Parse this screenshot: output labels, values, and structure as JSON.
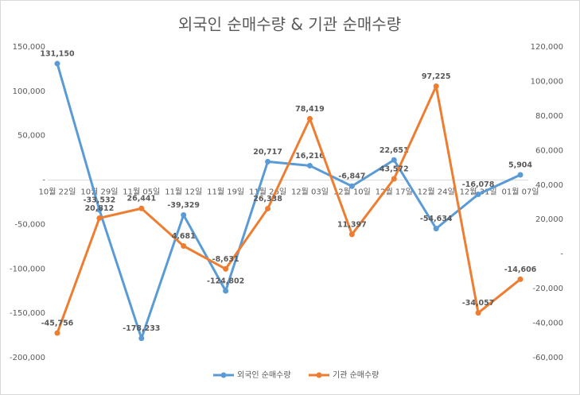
{
  "chart_data": {
    "type": "line",
    "title": "외국인 순매수량 & 기관 순매수량",
    "categories": [
      "10월 22일",
      "10월 29일",
      "11월 05일",
      "11월 12일",
      "11월 19일",
      "11월 26일",
      "12월 03일",
      "12월 10일",
      "12월 17일",
      "12월 24일",
      "12월 31일",
      "01월 07일"
    ],
    "series": [
      {
        "name": "외국인 순매수량",
        "color": "#5b9bd5",
        "label_color": "#4472c4",
        "values": [
          131150,
          -33532,
          -178233,
          -39329,
          -124802,
          20717,
          16216,
          -6847,
          22651,
          -54634,
          -16078,
          5904
        ],
        "value_labels": [
          "131,150",
          "-33,532",
          "-178,233",
          "-39,329",
          "-124,802",
          "20,717",
          "16,216",
          "-6,847",
          "22,651",
          "-54,634",
          "-16,078",
          "5,904"
        ]
      },
      {
        "name": "기관 순매수량",
        "color": "#ed7d31",
        "label_color": "#ed7d31",
        "axis": "y2",
        "values": [
          -45756,
          20812,
          26441,
          4681,
          -8631,
          26338,
          78419,
          11397,
          43572,
          97225,
          -34057,
          -14606
        ],
        "value_labels": [
          "-45,756",
          "20,812",
          "26,441",
          "4,681",
          "-8,631",
          "26,338",
          "78,419",
          "11,397",
          "43,572",
          "97,225",
          "-34,057",
          "-14,606"
        ]
      }
    ],
    "ylim": [
      -200000,
      150000
    ],
    "yticks": [
      {
        "value": -200000,
        "label": "-200,000"
      },
      {
        "value": -150000,
        "label": "-150,000"
      },
      {
        "value": -100000,
        "label": "-100,000"
      },
      {
        "value": -50000,
        "label": "-50,000"
      },
      {
        "value": 0,
        "label": "-"
      },
      {
        "value": 50000,
        "label": "50,000"
      },
      {
        "value": 100000,
        "label": "100,000"
      },
      {
        "value": 150000,
        "label": "150,000"
      }
    ],
    "y2lim": [
      -60000,
      120000
    ],
    "y2ticks": [
      {
        "value": -60000,
        "label": "-60,000"
      },
      {
        "value": -40000,
        "label": "-40,000"
      },
      {
        "value": -20000,
        "label": "-20,000"
      },
      {
        "value": 0,
        "label": "-"
      },
      {
        "value": 20000,
        "label": "20,000"
      },
      {
        "value": 40000,
        "label": "40,000"
      },
      {
        "value": 60000,
        "label": "60,000"
      },
      {
        "value": 80000,
        "label": "80,000"
      },
      {
        "value": 100000,
        "label": "100,000"
      },
      {
        "value": 120000,
        "label": "120,000"
      }
    ],
    "legend": "bottom"
  }
}
